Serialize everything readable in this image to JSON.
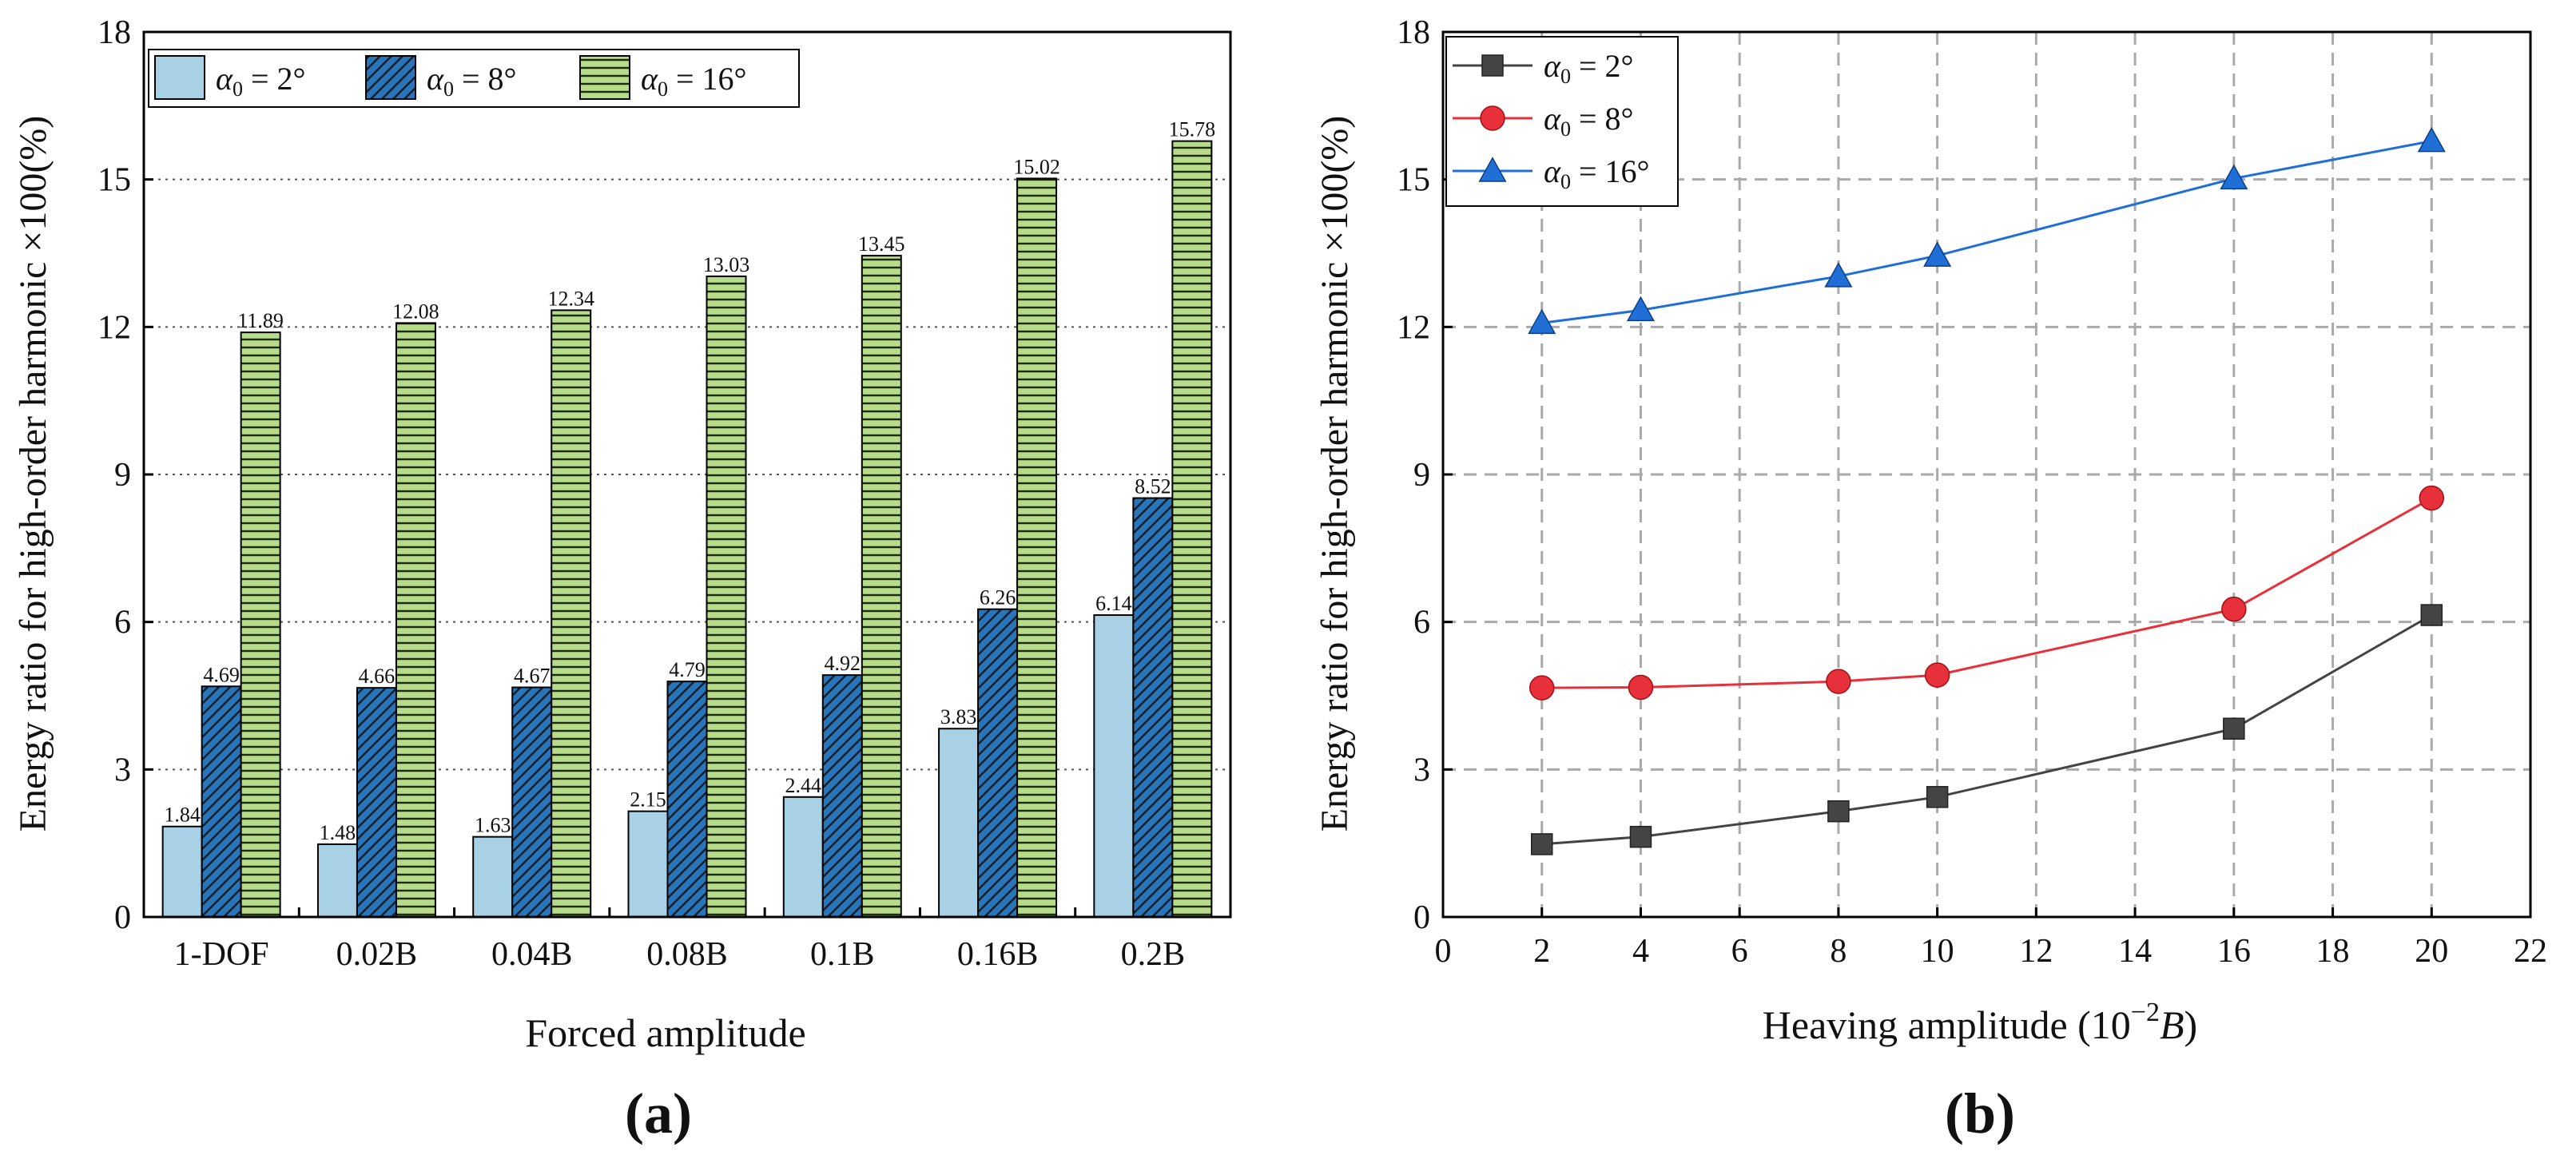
{
  "chart_data": [
    {
      "type": "bar",
      "panel_label": "(a)",
      "xlabel": "Forced amplitude",
      "ylabel": "Energy ratio for high-order harmonic ×100(%)",
      "categories": [
        "1-DOF",
        "0.02B",
        "0.04B",
        "0.08B",
        "0.1B",
        "0.16B",
        "0.2B"
      ],
      "ylim": [
        0,
        18
      ],
      "yticks": [
        0,
        3,
        6,
        9,
        12,
        15,
        18
      ],
      "grid": "horizontal dotted",
      "legend_position": "top-left",
      "series": [
        {
          "name": "α₀ = 2°",
          "symbol": "α",
          "sub": "0",
          "rest": " = 2°",
          "color": "#a9d1e6",
          "pattern": "none",
          "values": [
            1.84,
            1.48,
            1.63,
            2.15,
            2.44,
            3.83,
            6.14
          ]
        },
        {
          "name": "α₀ = 8°",
          "symbol": "α",
          "sub": "0",
          "rest": " = 8°",
          "color": "#2a74b8",
          "pattern": "diagonal",
          "values": [
            4.69,
            4.66,
            4.67,
            4.79,
            4.92,
            6.26,
            8.52
          ]
        },
        {
          "name": "α₀ = 16°",
          "symbol": "α",
          "sub": "0",
          "rest": " = 16°",
          "color": "#b6db8a",
          "pattern": "horizontal",
          "values": [
            11.89,
            12.08,
            12.34,
            13.03,
            13.45,
            15.02,
            15.78
          ]
        }
      ]
    },
    {
      "type": "line",
      "panel_label": "(b)",
      "xlabel_main": "Heaving amplitude (10",
      "xlabel_sup": "−2",
      "xlabel_var": "B",
      "xlabel_close": ")",
      "ylabel": "Energy ratio for high-order harmonic ×100(%)",
      "x": [
        2,
        4,
        8,
        10,
        16,
        20
      ],
      "xlim": [
        0,
        22
      ],
      "xticks": [
        0,
        2,
        4,
        6,
        8,
        10,
        12,
        14,
        16,
        18,
        20,
        22
      ],
      "ylim": [
        0,
        18
      ],
      "yticks": [
        0,
        3,
        6,
        9,
        12,
        15,
        18
      ],
      "grid": "dashed",
      "legend_position": "top-left",
      "series": [
        {
          "name": "α₀ = 2°",
          "symbol": "α",
          "sub": "0",
          "rest": " = 2°",
          "color": "#444444",
          "marker": "square",
          "values": [
            1.48,
            1.63,
            2.15,
            2.44,
            3.83,
            6.14
          ]
        },
        {
          "name": "α₀ = 8°",
          "symbol": "α",
          "sub": "0",
          "rest": " = 8°",
          "color": "#e8303a",
          "marker": "circle",
          "values": [
            4.66,
            4.67,
            4.79,
            4.92,
            6.26,
            8.52
          ]
        },
        {
          "name": "α₀ = 16°",
          "symbol": "α",
          "sub": "0",
          "rest": " = 16°",
          "color": "#1f6fd6",
          "marker": "triangle",
          "values": [
            12.08,
            12.34,
            13.03,
            13.45,
            15.02,
            15.78
          ]
        }
      ]
    }
  ]
}
